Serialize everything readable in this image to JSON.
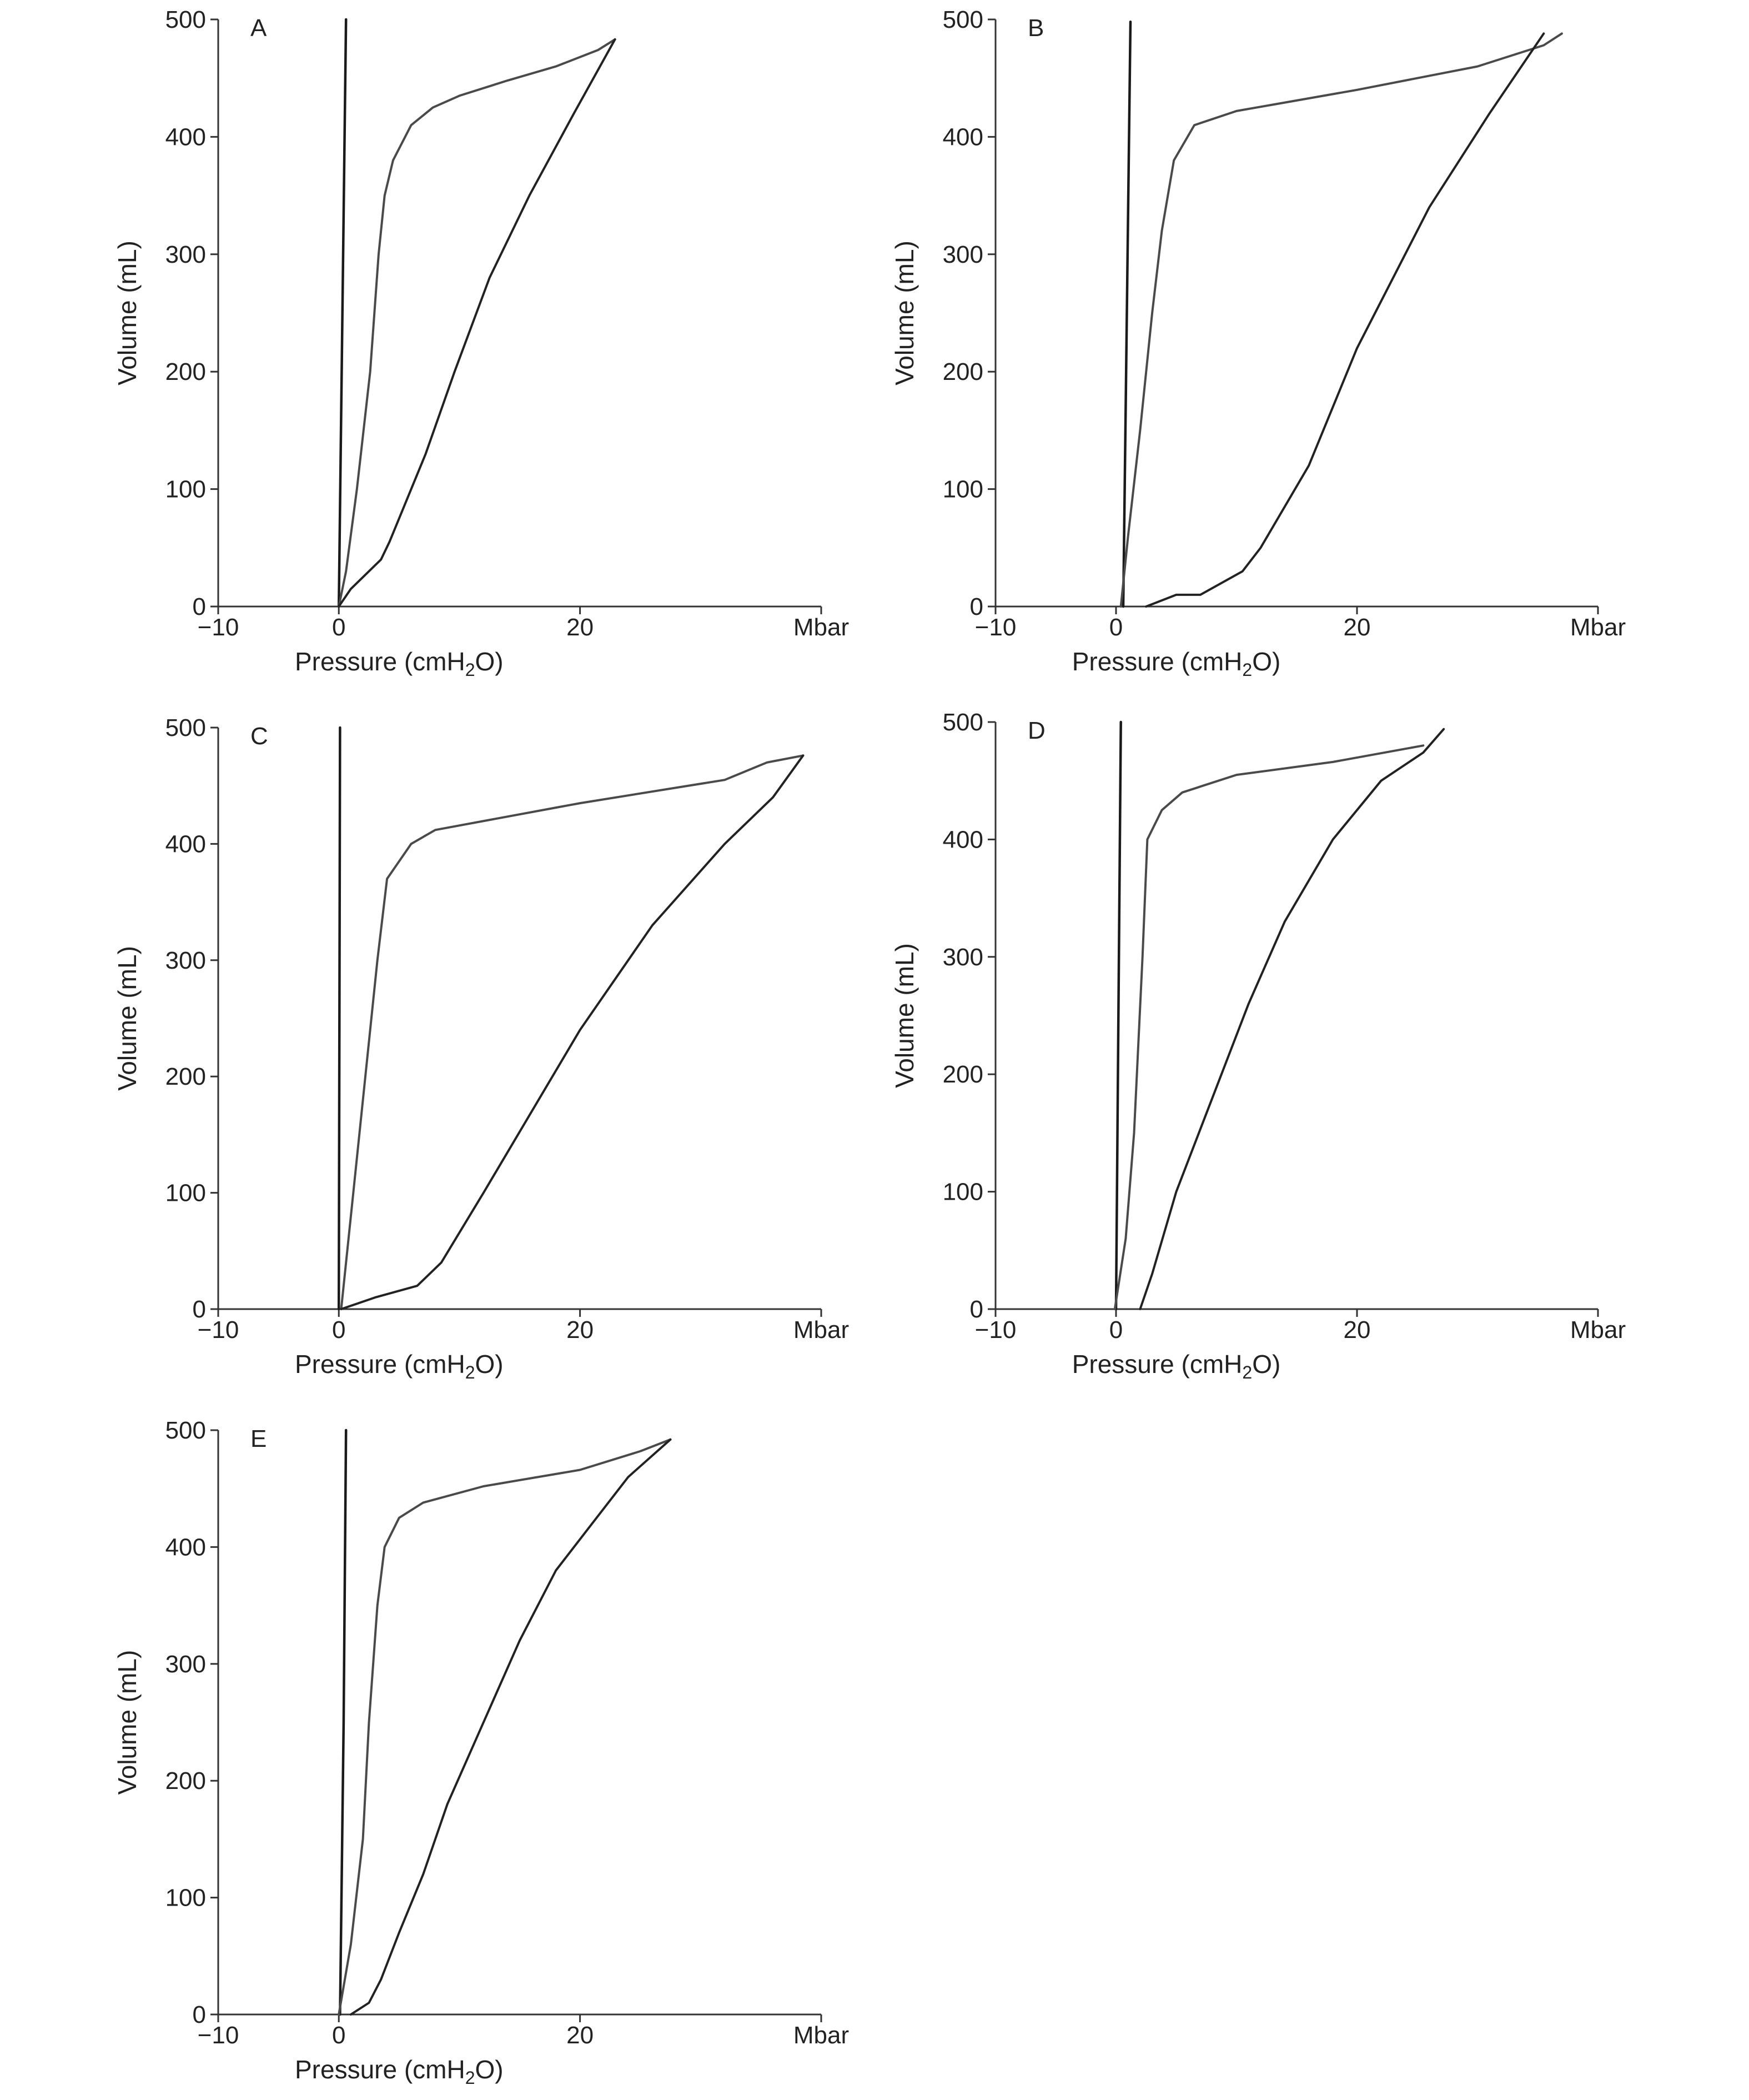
{
  "chart_data": [
    {
      "type": "line",
      "panel_label": "A",
      "xlabel": "Pressure (cmH2O)",
      "ylabel": "Volume (mL)",
      "x_unit_label": "Mbar",
      "xlim": [
        -10,
        40
      ],
      "ylim": [
        0,
        500
      ],
      "xticks": [
        -10,
        0,
        20
      ],
      "yticks": [
        0,
        100,
        200,
        300,
        400,
        500
      ],
      "grid": false,
      "series": [
        {
          "x": [
            0,
            0.3,
            0.6
          ],
          "y": [
            0,
            250,
            500
          ]
        },
        {
          "x": [
            0,
            0.6,
            1.5,
            2.6,
            3.3,
            3.8,
            4.5,
            6.0,
            7.8,
            10,
            14,
            18,
            21.5,
            22.9
          ],
          "y": [
            0,
            30,
            100,
            200,
            300,
            350,
            380,
            410,
            425,
            435,
            448,
            460,
            474,
            483
          ]
        },
        {
          "x": [
            0,
            1,
            2,
            3.5,
            4.2,
            5,
            7.2,
            9.6,
            12.5,
            15.8,
            19.5,
            22.9
          ],
          "y": [
            0,
            15,
            25,
            40,
            55,
            75,
            130,
            200,
            280,
            350,
            420,
            483
          ]
        }
      ]
    },
    {
      "type": "line",
      "panel_label": "B",
      "xlabel": "Pressure (cmH2O)",
      "ylabel": "Volume (mL)",
      "x_unit_label": "Mbar",
      "xlim": [
        -10,
        40
      ],
      "ylim": [
        0,
        500
      ],
      "xticks": [
        -10,
        0,
        20
      ],
      "yticks": [
        0,
        100,
        200,
        300,
        400,
        500
      ],
      "grid": false,
      "series": [
        {
          "x": [
            0.6,
            0.9,
            1.2
          ],
          "y": [
            0,
            250,
            498
          ]
        },
        {
          "x": [
            0.4,
            1.0,
            2.0,
            3.0,
            3.8,
            4.8,
            6.5,
            10,
            20,
            30,
            35.5,
            37
          ],
          "y": [
            0,
            60,
            150,
            250,
            320,
            380,
            410,
            422,
            440,
            460,
            478,
            488
          ]
        },
        {
          "x": [
            2.5,
            5,
            7,
            10.5,
            12,
            16,
            20,
            26,
            31,
            35.5
          ],
          "y": [
            0,
            10,
            10,
            30,
            50,
            120,
            220,
            340,
            420,
            488
          ]
        }
      ]
    },
    {
      "type": "line",
      "panel_label": "C",
      "xlabel": "Pressure (cmH2O)",
      "ylabel": "Volume (mL)",
      "x_unit_label": "Mbar",
      "xlim": [
        -10,
        40
      ],
      "ylim": [
        0,
        500
      ],
      "xticks": [
        -10,
        0,
        20
      ],
      "yticks": [
        0,
        100,
        200,
        300,
        400,
        500
      ],
      "grid": false,
      "series": [
        {
          "x": [
            0,
            0.05,
            0.1
          ],
          "y": [
            0,
            250,
            500
          ]
        },
        {
          "x": [
            0.2,
            1.2,
            2.2,
            3.2,
            4,
            6,
            8,
            20,
            32,
            35.5,
            38.5
          ],
          "y": [
            0,
            100,
            200,
            300,
            370,
            400,
            412,
            435,
            455,
            470,
            476
          ]
        },
        {
          "x": [
            0.2,
            3,
            6.5,
            8.5,
            12,
            16,
            20,
            26,
            32,
            36,
            38.5
          ],
          "y": [
            0,
            10,
            20,
            40,
            100,
            170,
            240,
            330,
            400,
            440,
            476
          ]
        }
      ]
    },
    {
      "type": "line",
      "panel_label": "D",
      "xlabel": "Pressure (cmH2O)",
      "ylabel": "Volume (mL)",
      "x_unit_label": "Mbar",
      "xlim": [
        -10,
        40
      ],
      "ylim": [
        0,
        500
      ],
      "xticks": [
        -10,
        0,
        20
      ],
      "yticks": [
        0,
        100,
        200,
        300,
        400,
        500
      ],
      "grid": false,
      "series": [
        {
          "x": [
            0,
            0.2,
            0.4
          ],
          "y": [
            0,
            250,
            500
          ]
        },
        {
          "x": [
            -0.1,
            0.8,
            1.5,
            2.2,
            2.6,
            3.8,
            5.5,
            10,
            18,
            25.5
          ],
          "y": [
            0,
            60,
            150,
            300,
            400,
            425,
            440,
            455,
            466,
            480
          ]
        },
        {
          "x": [
            2,
            3,
            5,
            8,
            11,
            14,
            18,
            22,
            25.5,
            27.2
          ],
          "y": [
            0,
            30,
            100,
            180,
            260,
            330,
            400,
            450,
            474,
            494
          ]
        }
      ]
    },
    {
      "type": "line",
      "panel_label": "E",
      "xlabel": "Pressure (cmH2O)",
      "ylabel": "Volume (mL)",
      "x_unit_label": "Mbar",
      "xlim": [
        -10,
        40
      ],
      "ylim": [
        0,
        500
      ],
      "xticks": [
        -10,
        0,
        20
      ],
      "yticks": [
        0,
        100,
        200,
        300,
        400,
        500
      ],
      "grid": false,
      "series": [
        {
          "x": [
            0.1,
            0.4,
            0.6
          ],
          "y": [
            0,
            250,
            500
          ]
        },
        {
          "x": [
            0,
            1,
            2,
            2.5,
            3.2,
            3.8,
            5,
            7,
            12,
            20,
            25,
            27.5
          ],
          "y": [
            0,
            60,
            150,
            250,
            350,
            400,
            425,
            438,
            452,
            466,
            482,
            492
          ]
        },
        {
          "x": [
            1,
            2.5,
            3.5,
            5,
            7,
            9,
            12,
            15,
            18,
            21,
            24,
            27.5
          ],
          "y": [
            0,
            10,
            30,
            70,
            120,
            180,
            250,
            320,
            380,
            420,
            460,
            492
          ]
        }
      ]
    }
  ]
}
